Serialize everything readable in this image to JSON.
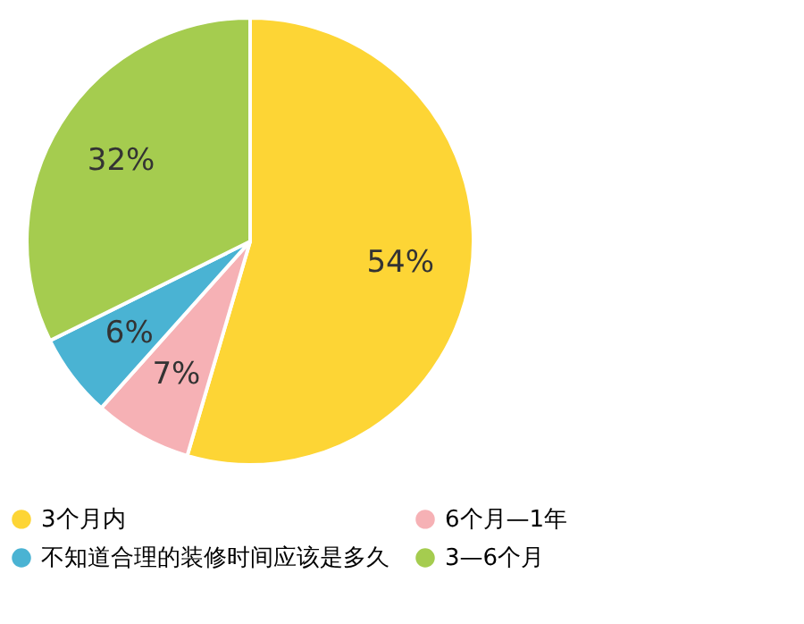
{
  "chart_data": {
    "type": "pie",
    "categories": [
      "3个月内",
      "6个月—1年",
      "不知道合理的装修时间应该是多久",
      "3—6个月"
    ],
    "values": [
      54,
      7,
      6,
      32
    ],
    "value_labels": [
      "54%",
      "7%",
      "6%",
      "32%"
    ],
    "colors": [
      "#fdd535",
      "#f6b1b5",
      "#4ab3d3",
      "#a5cc4f"
    ],
    "legend": "bottom"
  }
}
